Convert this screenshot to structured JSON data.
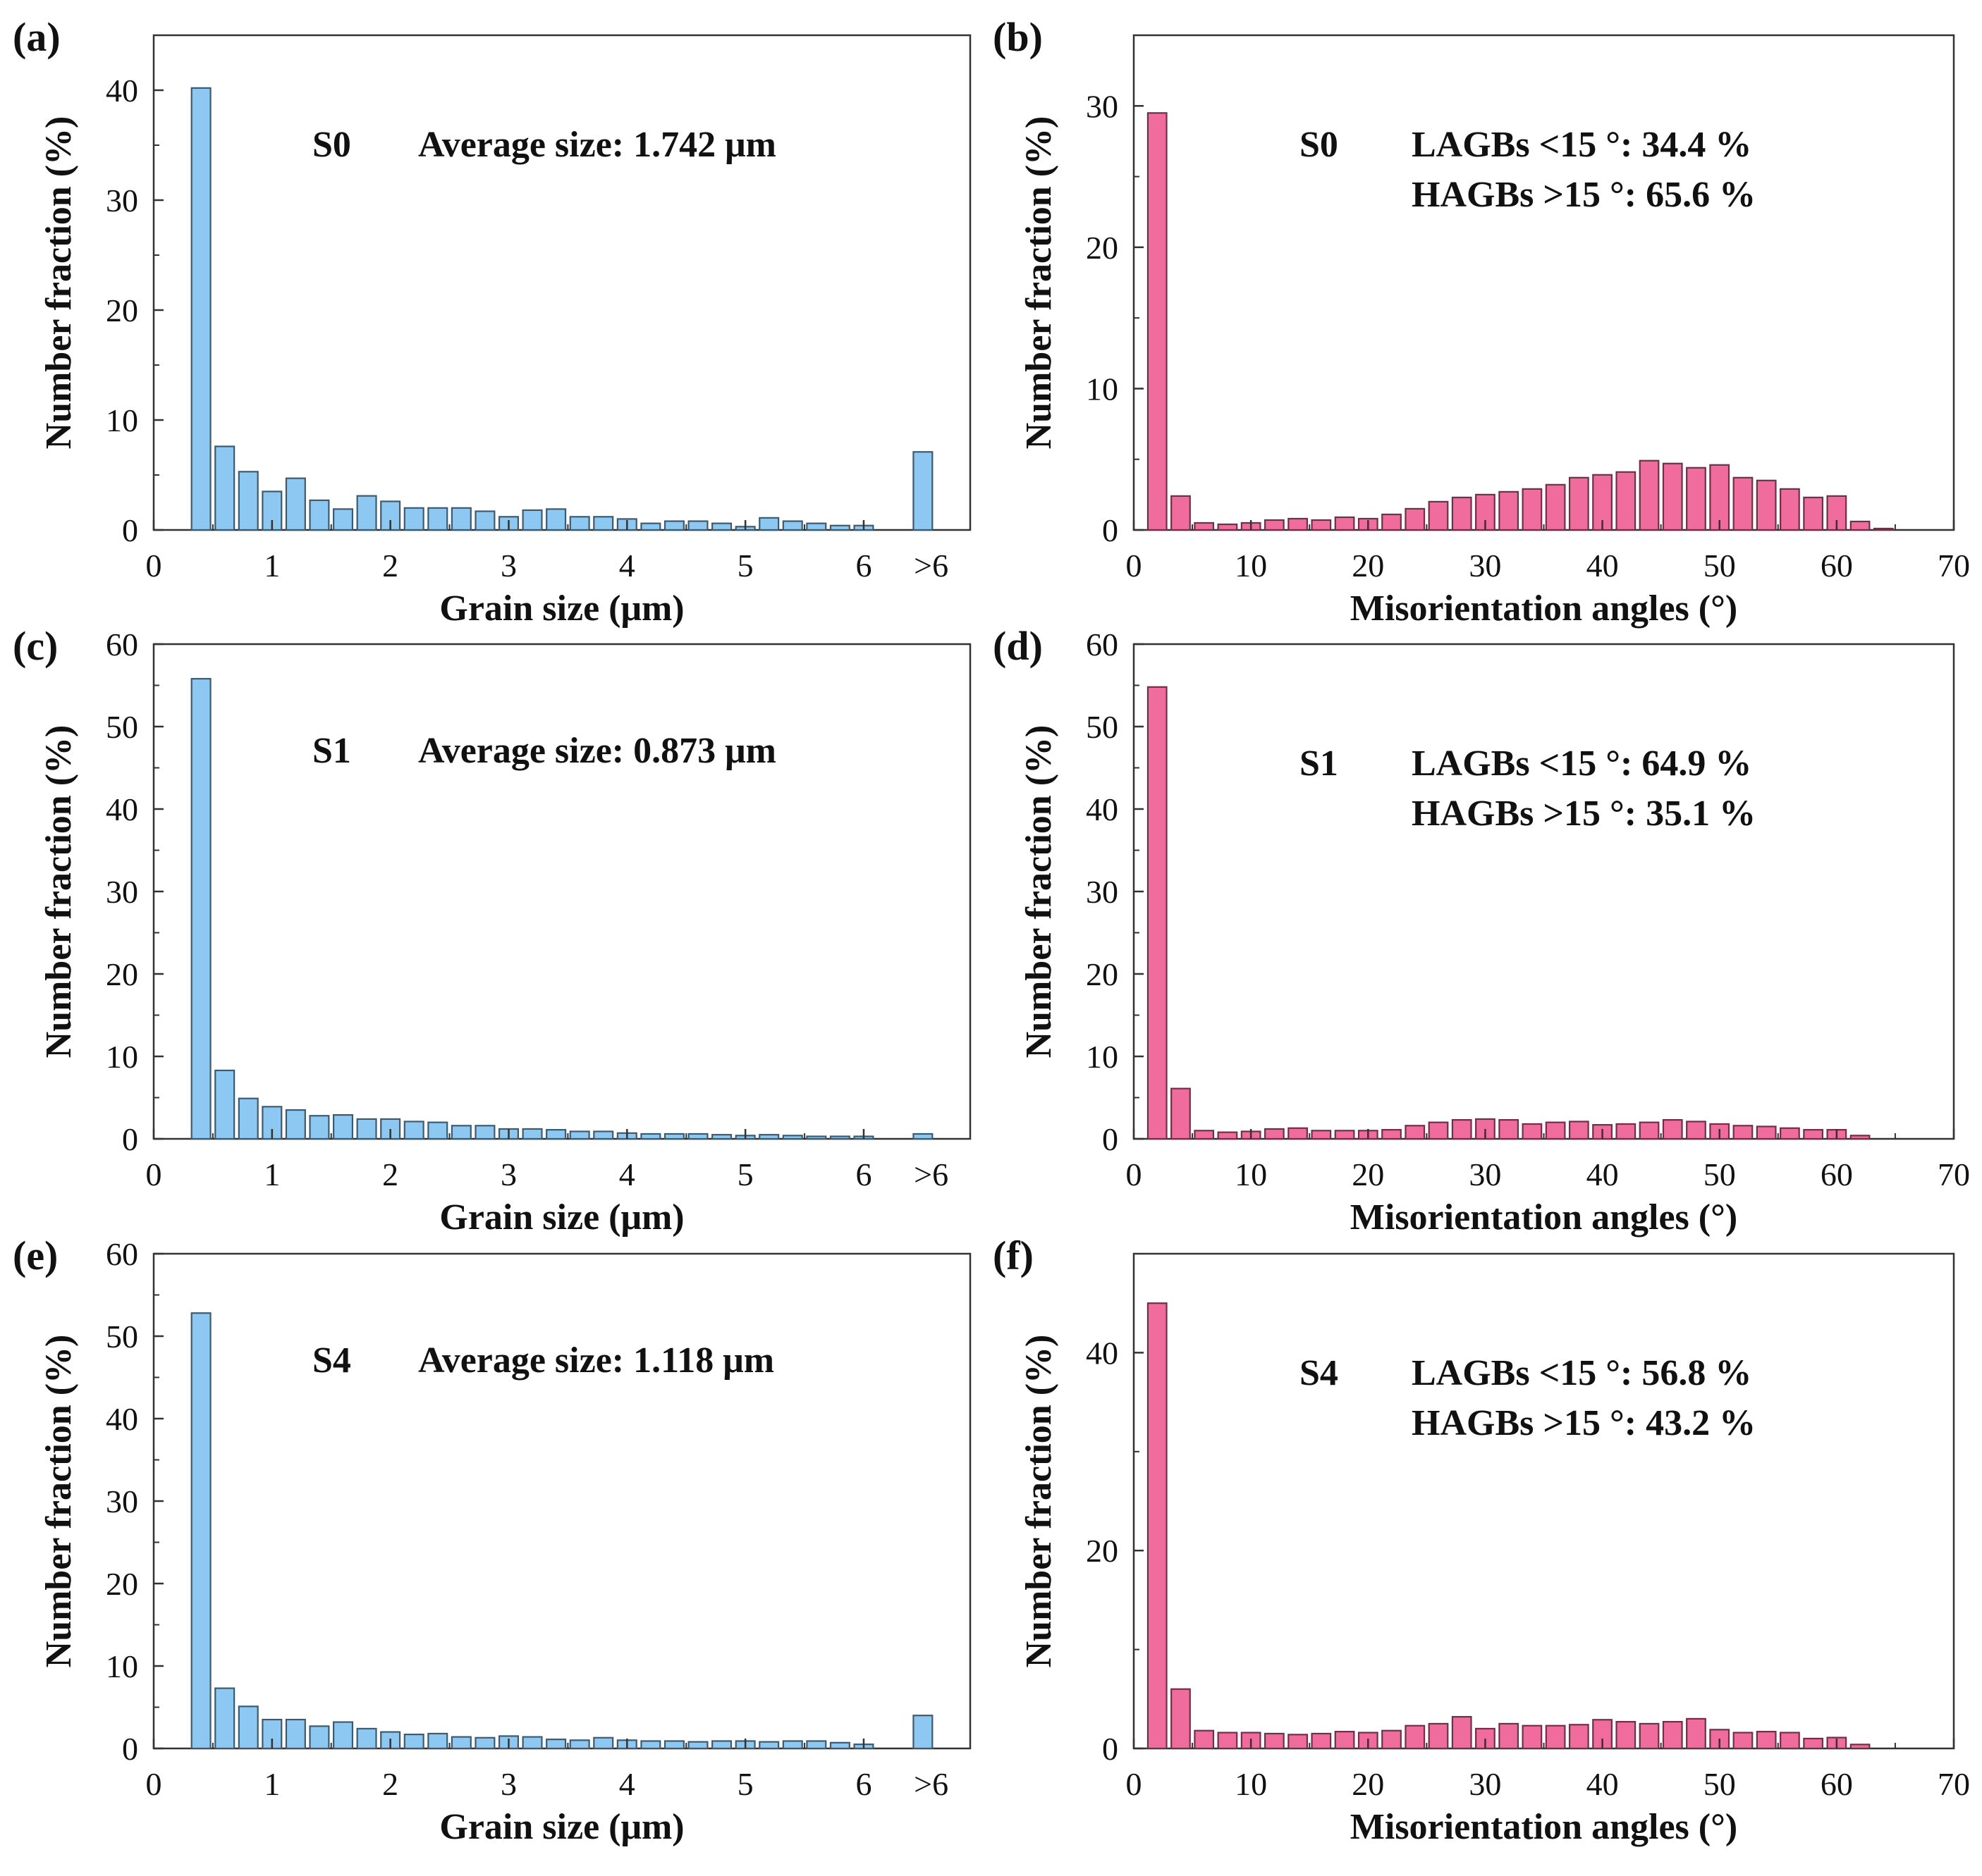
{
  "chart_data": [
    {
      "panel": "(a)",
      "type": "bar",
      "bar_color": "#8cc8f2",
      "xlabel": "Grain size (μm)",
      "ylabel": "Number fraction (%)",
      "xlim": [
        0,
        6.9
      ],
      "ylim": [
        0,
        45
      ],
      "xticks": [
        {
          "value": 0,
          "label": "0"
        },
        {
          "value": 1,
          "label": "1"
        },
        {
          "value": 2,
          "label": "2"
        },
        {
          "value": 3,
          "label": "3"
        },
        {
          "value": 4,
          "label": "4"
        },
        {
          "value": 5,
          "label": "5"
        },
        {
          "value": 6,
          "label": "6"
        },
        {
          "value": 6.57,
          "label": ">6"
        }
      ],
      "yticks": [
        0,
        10,
        20,
        30,
        40
      ],
      "x": [
        0.4,
        0.6,
        0.8,
        1.0,
        1.2,
        1.4,
        1.6,
        1.8,
        2.0,
        2.2,
        2.4,
        2.6,
        2.8,
        3.0,
        3.2,
        3.4,
        3.6,
        3.8,
        4.0,
        4.2,
        4.4,
        4.6,
        4.8,
        5.0,
        5.2,
        5.4,
        5.6,
        5.8,
        6.0,
        6.5
      ],
      "values": [
        40.2,
        7.6,
        5.3,
        3.5,
        4.7,
        2.7,
        1.9,
        3.1,
        2.6,
        2.0,
        2.0,
        2.0,
        1.7,
        1.2,
        1.8,
        1.9,
        1.2,
        1.2,
        1.0,
        0.6,
        0.8,
        0.8,
        0.6,
        0.3,
        1.1,
        0.8,
        0.6,
        0.4,
        0.4,
        7.1
      ],
      "bar_width": 0.16,
      "annotations": [
        "S0",
        "Average size:  1.742 μm"
      ]
    },
    {
      "panel": "(b)",
      "type": "bar",
      "bar_color": "#f06c9c",
      "xlabel": "Misorientation angles (°)",
      "ylabel": "Number fraction (%)",
      "xlim": [
        0,
        70
      ],
      "ylim": [
        0,
        35
      ],
      "xticks": [
        {
          "value": 0,
          "label": "0"
        },
        {
          "value": 10,
          "label": "10"
        },
        {
          "value": 20,
          "label": "20"
        },
        {
          "value": 30,
          "label": "30"
        },
        {
          "value": 40,
          "label": "40"
        },
        {
          "value": 50,
          "label": "50"
        },
        {
          "value": 60,
          "label": "60"
        },
        {
          "value": 70,
          "label": "70"
        }
      ],
      "yticks": [
        0,
        10,
        20,
        30
      ],
      "x": [
        2,
        4,
        6,
        8,
        10,
        12,
        14,
        16,
        18,
        20,
        22,
        24,
        26,
        28,
        30,
        32,
        34,
        36,
        38,
        40,
        42,
        44,
        46,
        48,
        50,
        52,
        54,
        56,
        58,
        60,
        62,
        64
      ],
      "values": [
        29.5,
        2.4,
        0.5,
        0.4,
        0.5,
        0.7,
        0.8,
        0.7,
        0.9,
        0.8,
        1.1,
        1.5,
        2.0,
        2.3,
        2.5,
        2.7,
        2.9,
        3.2,
        3.7,
        3.9,
        4.1,
        4.9,
        4.7,
        4.4,
        4.6,
        3.7,
        3.5,
        2.9,
        2.3,
        2.4,
        0.6,
        0.1
      ],
      "bar_width": 1.6,
      "annotations": [
        "S0",
        "LAGBs <15 °: 34.4 %",
        "HAGBs >15 °: 65.6 %"
      ]
    },
    {
      "panel": "(c)",
      "type": "bar",
      "bar_color": "#8cc8f2",
      "xlabel": "Grain size (μm)",
      "ylabel": "Number fraction (%)",
      "xlim": [
        0,
        6.9
      ],
      "ylim": [
        0,
        60
      ],
      "xticks": [
        {
          "value": 0,
          "label": "0"
        },
        {
          "value": 1,
          "label": "1"
        },
        {
          "value": 2,
          "label": "2"
        },
        {
          "value": 3,
          "label": "3"
        },
        {
          "value": 4,
          "label": "4"
        },
        {
          "value": 5,
          "label": "5"
        },
        {
          "value": 6,
          "label": "6"
        },
        {
          "value": 6.57,
          "label": ">6"
        }
      ],
      "yticks": [
        0,
        10,
        20,
        30,
        40,
        50,
        60
      ],
      "x": [
        0.4,
        0.6,
        0.8,
        1.0,
        1.2,
        1.4,
        1.6,
        1.8,
        2.0,
        2.2,
        2.4,
        2.6,
        2.8,
        3.0,
        3.2,
        3.4,
        3.6,
        3.8,
        4.0,
        4.2,
        4.4,
        4.6,
        4.8,
        5.0,
        5.2,
        5.4,
        5.6,
        5.8,
        6.0,
        6.5
      ],
      "values": [
        55.8,
        8.3,
        4.9,
        3.9,
        3.5,
        2.8,
        2.9,
        2.4,
        2.4,
        2.1,
        2.0,
        1.6,
        1.6,
        1.2,
        1.2,
        1.1,
        0.9,
        0.9,
        0.7,
        0.6,
        0.6,
        0.6,
        0.5,
        0.4,
        0.5,
        0.4,
        0.3,
        0.3,
        0.3,
        0.6
      ],
      "bar_width": 0.16,
      "annotations": [
        "S1",
        "Average size:  0.873 μm"
      ]
    },
    {
      "panel": "(d)",
      "type": "bar",
      "bar_color": "#f06c9c",
      "xlabel": "Misorientation angles (°)",
      "ylabel": "Number fraction (%)",
      "xlim": [
        0,
        70
      ],
      "ylim": [
        0,
        60
      ],
      "xticks": [
        {
          "value": 0,
          "label": "0"
        },
        {
          "value": 10,
          "label": "10"
        },
        {
          "value": 20,
          "label": "20"
        },
        {
          "value": 30,
          "label": "30"
        },
        {
          "value": 40,
          "label": "40"
        },
        {
          "value": 50,
          "label": "50"
        },
        {
          "value": 60,
          "label": "60"
        },
        {
          "value": 70,
          "label": "70"
        }
      ],
      "yticks": [
        0,
        10,
        20,
        30,
        40,
        50,
        60
      ],
      "x": [
        2,
        4,
        6,
        8,
        10,
        12,
        14,
        16,
        18,
        20,
        22,
        24,
        26,
        28,
        30,
        32,
        34,
        36,
        38,
        40,
        42,
        44,
        46,
        48,
        50,
        52,
        54,
        56,
        58,
        60,
        62
      ],
      "values": [
        54.8,
        6.1,
        1.0,
        0.8,
        0.9,
        1.2,
        1.3,
        1.0,
        1.0,
        1.0,
        1.1,
        1.6,
        2.0,
        2.3,
        2.4,
        2.3,
        1.8,
        2.0,
        2.1,
        1.7,
        1.8,
        2.0,
        2.3,
        2.1,
        1.8,
        1.6,
        1.5,
        1.3,
        1.1,
        1.1,
        0.4
      ],
      "bar_width": 1.6,
      "annotations": [
        "S1",
        "LAGBs <15 °: 64.9 %",
        "HAGBs >15 °: 35.1 %"
      ]
    },
    {
      "panel": "(e)",
      "type": "bar",
      "bar_color": "#8cc8f2",
      "xlabel": "Grain size (μm)",
      "ylabel": "Number fraction (%)",
      "xlim": [
        0,
        6.9
      ],
      "ylim": [
        0,
        60
      ],
      "xticks": [
        {
          "value": 0,
          "label": "0"
        },
        {
          "value": 1,
          "label": "1"
        },
        {
          "value": 2,
          "label": "2"
        },
        {
          "value": 3,
          "label": "3"
        },
        {
          "value": 4,
          "label": "4"
        },
        {
          "value": 5,
          "label": "5"
        },
        {
          "value": 6,
          "label": "6"
        },
        {
          "value": 6.57,
          "label": ">6"
        }
      ],
      "yticks": [
        0,
        10,
        20,
        30,
        40,
        50,
        60
      ],
      "x": [
        0.4,
        0.6,
        0.8,
        1.0,
        1.2,
        1.4,
        1.6,
        1.8,
        2.0,
        2.2,
        2.4,
        2.6,
        2.8,
        3.0,
        3.2,
        3.4,
        3.6,
        3.8,
        4.0,
        4.2,
        4.4,
        4.6,
        4.8,
        5.0,
        5.2,
        5.4,
        5.6,
        5.8,
        6.0,
        6.5
      ],
      "values": [
        52.8,
        7.3,
        5.1,
        3.5,
        3.5,
        2.7,
        3.2,
        2.4,
        2.0,
        1.7,
        1.8,
        1.4,
        1.3,
        1.5,
        1.4,
        1.1,
        1.0,
        1.3,
        1.0,
        0.9,
        0.9,
        0.8,
        0.9,
        0.9,
        0.8,
        0.9,
        0.9,
        0.7,
        0.5,
        4.0
      ],
      "bar_width": 0.16,
      "annotations": [
        "S4",
        "Average size:  1.118 μm"
      ]
    },
    {
      "panel": "(f)",
      "type": "bar",
      "bar_color": "#f06c9c",
      "xlabel": "Misorientation angles (°)",
      "ylabel": "Number fraction (%)",
      "xlim": [
        0,
        70
      ],
      "ylim": [
        0,
        50
      ],
      "xticks": [
        {
          "value": 0,
          "label": "0"
        },
        {
          "value": 10,
          "label": "10"
        },
        {
          "value": 20,
          "label": "20"
        },
        {
          "value": 30,
          "label": "30"
        },
        {
          "value": 40,
          "label": "40"
        },
        {
          "value": 50,
          "label": "50"
        },
        {
          "value": 60,
          "label": "60"
        },
        {
          "value": 70,
          "label": "70"
        }
      ],
      "yticks": [
        0,
        20,
        40
      ],
      "x": [
        2,
        4,
        6,
        8,
        10,
        12,
        14,
        16,
        18,
        20,
        22,
        24,
        26,
        28,
        30,
        32,
        34,
        36,
        38,
        40,
        42,
        44,
        46,
        48,
        50,
        52,
        54,
        56,
        58,
        60,
        62
      ],
      "values": [
        45.0,
        6.0,
        1.8,
        1.6,
        1.6,
        1.5,
        1.4,
        1.5,
        1.7,
        1.6,
        1.8,
        2.3,
        2.5,
        3.2,
        2.0,
        2.5,
        2.3,
        2.3,
        2.4,
        2.9,
        2.7,
        2.5,
        2.7,
        3.0,
        1.9,
        1.6,
        1.7,
        1.6,
        1.0,
        1.1,
        0.4
      ],
      "bar_width": 1.6,
      "annotations": [
        "S4",
        "LAGBs <15 °: 56.8 %",
        "HAGBs >15 °: 43.2 %"
      ]
    }
  ]
}
